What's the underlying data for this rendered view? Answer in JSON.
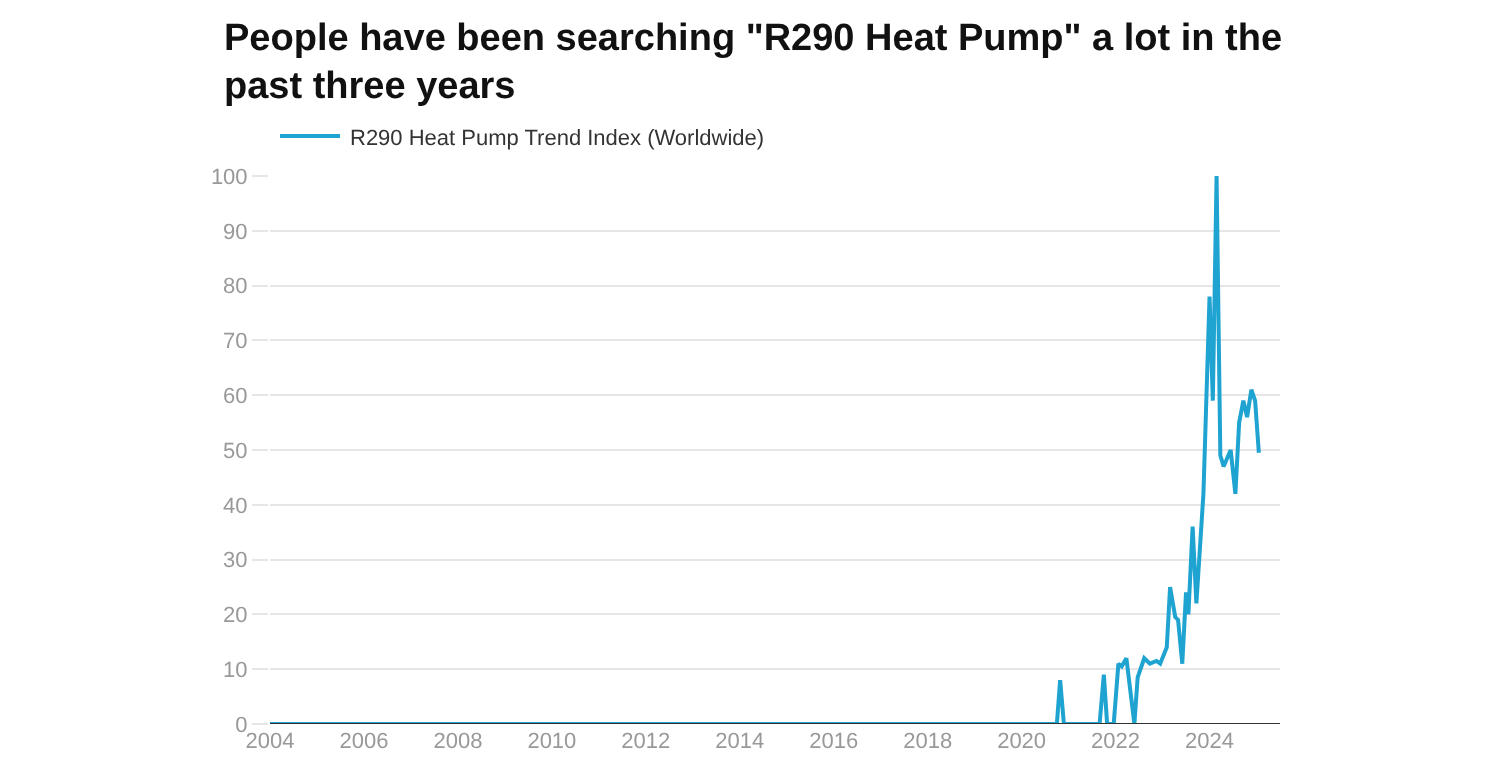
{
  "chart_data": {
    "type": "line",
    "title": "People have been searching \"R290 Heat Pump\" a lot in the past three years",
    "x": [
      2004,
      2020.75,
      2020.82,
      2020.9,
      2021.66,
      2021.75,
      2021.82,
      2021.96,
      2022.06,
      2022.13,
      2022.23,
      2022.4,
      2022.47,
      2022.61,
      2022.73,
      2022.87,
      2022.95,
      2023.09,
      2023.16,
      2023.27,
      2023.33,
      2023.42,
      2023.5,
      2023.55,
      2023.64,
      2023.72,
      2023.87,
      2024.0,
      2024.07,
      2024.15,
      2024.23,
      2024.3,
      2024.45,
      2024.55,
      2024.63,
      2024.72,
      2024.8,
      2024.89,
      2024.97,
      2025.05
    ],
    "series": [
      {
        "name": "R290 Heat Pump Trend Index (Worldwide)",
        "color": "#1fa3d1",
        "values": [
          0,
          0,
          8,
          0,
          0,
          9,
          0,
          0,
          11,
          10.5,
          12,
          0,
          8.5,
          12,
          11,
          11.5,
          11,
          14,
          25,
          19.5,
          19,
          11,
          24,
          20,
          36,
          22,
          42,
          78,
          59,
          100,
          49,
          47,
          50,
          42,
          55,
          59,
          56,
          61,
          59,
          49.5
        ]
      }
    ],
    "xlim": [
      2004,
      2025.5
    ],
    "xticks": [
      2004,
      2006,
      2008,
      2010,
      2012,
      2014,
      2016,
      2018,
      2020,
      2022,
      2024
    ],
    "ylim": [
      0,
      100
    ],
    "yticks": [
      0,
      10,
      20,
      30,
      40,
      50,
      60,
      70,
      80,
      90,
      100
    ],
    "grid": "y",
    "legend": "top left",
    "marker": "none",
    "line_style": "solid"
  }
}
